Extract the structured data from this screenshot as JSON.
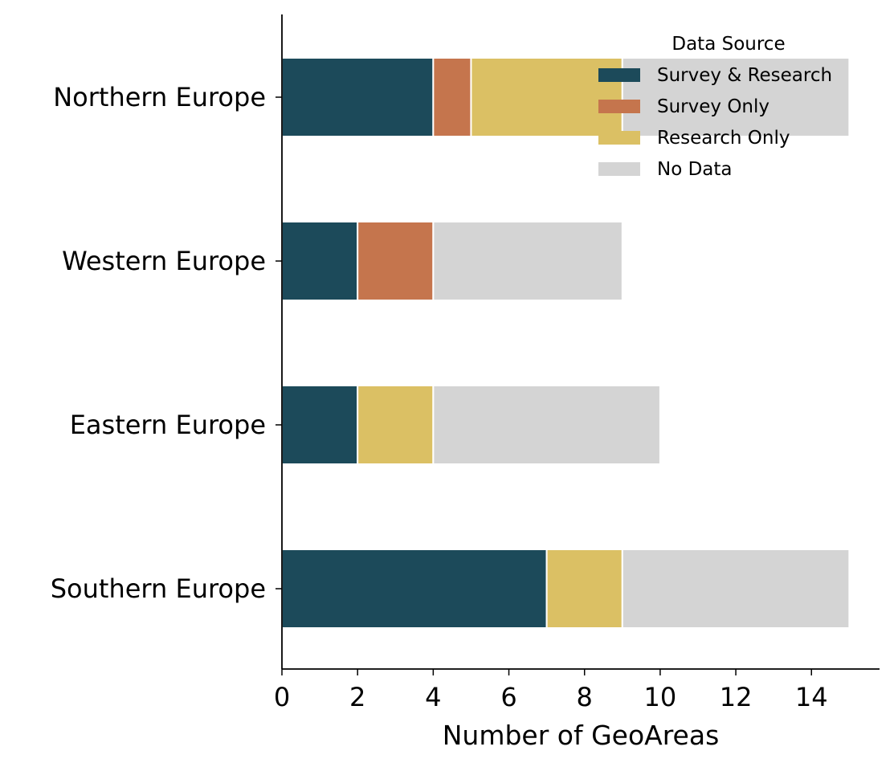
{
  "chart_data": {
    "type": "bar",
    "orientation": "horizontal",
    "stacked": true,
    "categories": [
      "Northern Europe",
      "Western Europe",
      "Eastern Europe",
      "Southern Europe"
    ],
    "series": [
      {
        "name": "Survey & Research",
        "color": "#1c4a5a",
        "values": [
          4,
          2,
          2,
          7
        ]
      },
      {
        "name": "Survey Only",
        "color": "#c5754d",
        "values": [
          1,
          2,
          0,
          0
        ]
      },
      {
        "name": "Research Only",
        "color": "#dbc064",
        "values": [
          4,
          0,
          2,
          2
        ]
      },
      {
        "name": "No Data",
        "color": "#d4d4d4",
        "values": [
          6,
          5,
          6,
          6
        ]
      }
    ],
    "xlabel": "Number of GeoAreas",
    "ylabel": "",
    "xlim": [
      0,
      15.8
    ],
    "xticks": [
      0,
      2,
      4,
      6,
      8,
      10,
      12,
      14
    ],
    "grid": false,
    "legend": {
      "title": "Data Source",
      "placement": "top-right",
      "frame": false
    }
  }
}
